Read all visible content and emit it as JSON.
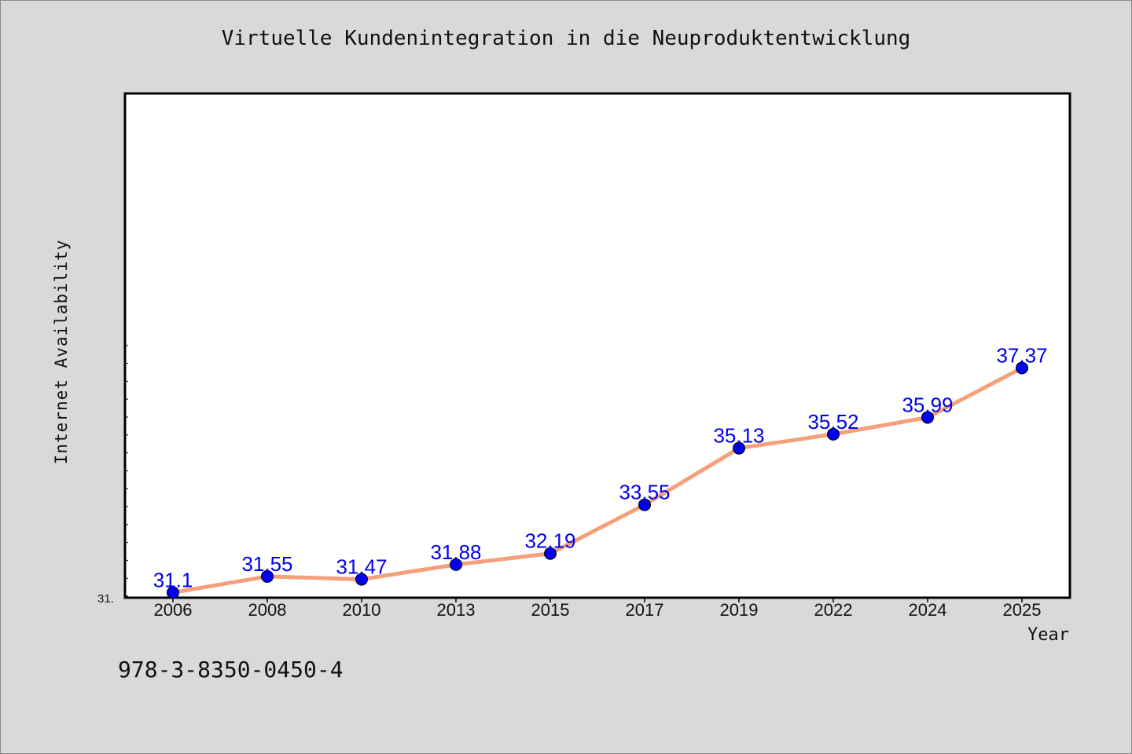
{
  "footer_text": "978-3-8350-0450-4",
  "chart_data": {
    "type": "line",
    "title": "Virtuelle Kundenintegration in die Neuproduktentwicklung",
    "xlabel": "Year",
    "ylabel": "Internet Availability",
    "categories": [
      "2006",
      "2008",
      "2010",
      "2013",
      "2015",
      "2017",
      "2019",
      "2022",
      "2024",
      "2025"
    ],
    "series": [
      {
        "values": [
          31.1,
          31.55,
          31.47,
          31.88,
          32.19,
          33.55,
          35.13,
          35.52,
          35.99,
          37.37
        ],
        "data_labels": [
          "31.1",
          "31.55",
          "31.47",
          "31.88",
          "32.19",
          "33.55",
          "35.13",
          "35.52",
          "35.99",
          "37.37"
        ],
        "line_color": "#f5a07a",
        "marker_color": "#0000ee"
      }
    ],
    "y_axis_min_label": "31.",
    "ylim": [
      31,
      38
    ],
    "grid": false,
    "legend": "none",
    "colors": {
      "background": "#d9d9d9",
      "plot_background": "#ffffff",
      "line": "#f5a07a",
      "marker": "#0000ee",
      "data_label": "#0000ee"
    }
  }
}
